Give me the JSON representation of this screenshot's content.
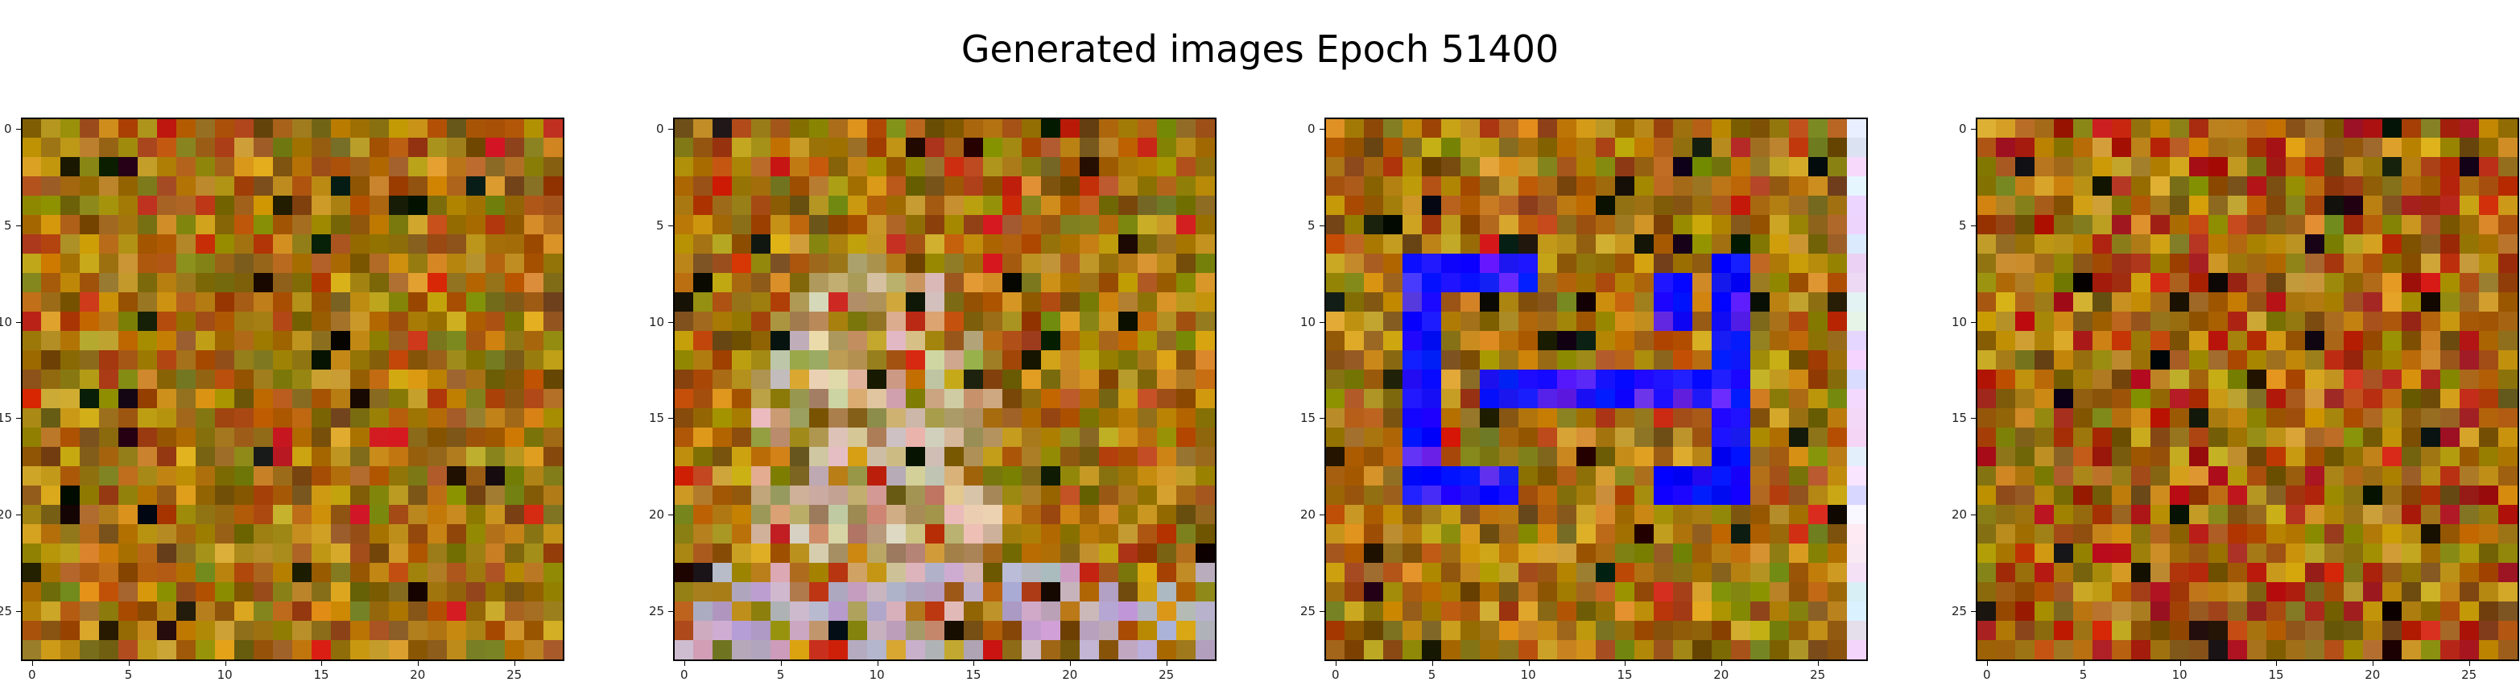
{
  "title": "Generated images Epoch 51400",
  "panels": [
    {
      "index": 1,
      "palette": "warm-ochre",
      "feature": "none"
    },
    {
      "index": 2,
      "palette": "ochre-pastel",
      "feature": "light-center"
    },
    {
      "index": 3,
      "palette": "warm-ochre",
      "feature": "blue-glyph",
      "accent": "#1010ff"
    },
    {
      "index": 4,
      "palette": "warm-red-ochre",
      "feature": "dark-diagonals"
    }
  ],
  "axis": {
    "xticks": [
      "0",
      "5",
      "10",
      "15",
      "20",
      "25"
    ],
    "yticks": [
      "0",
      "5",
      "10",
      "15",
      "20",
      "25"
    ]
  }
}
